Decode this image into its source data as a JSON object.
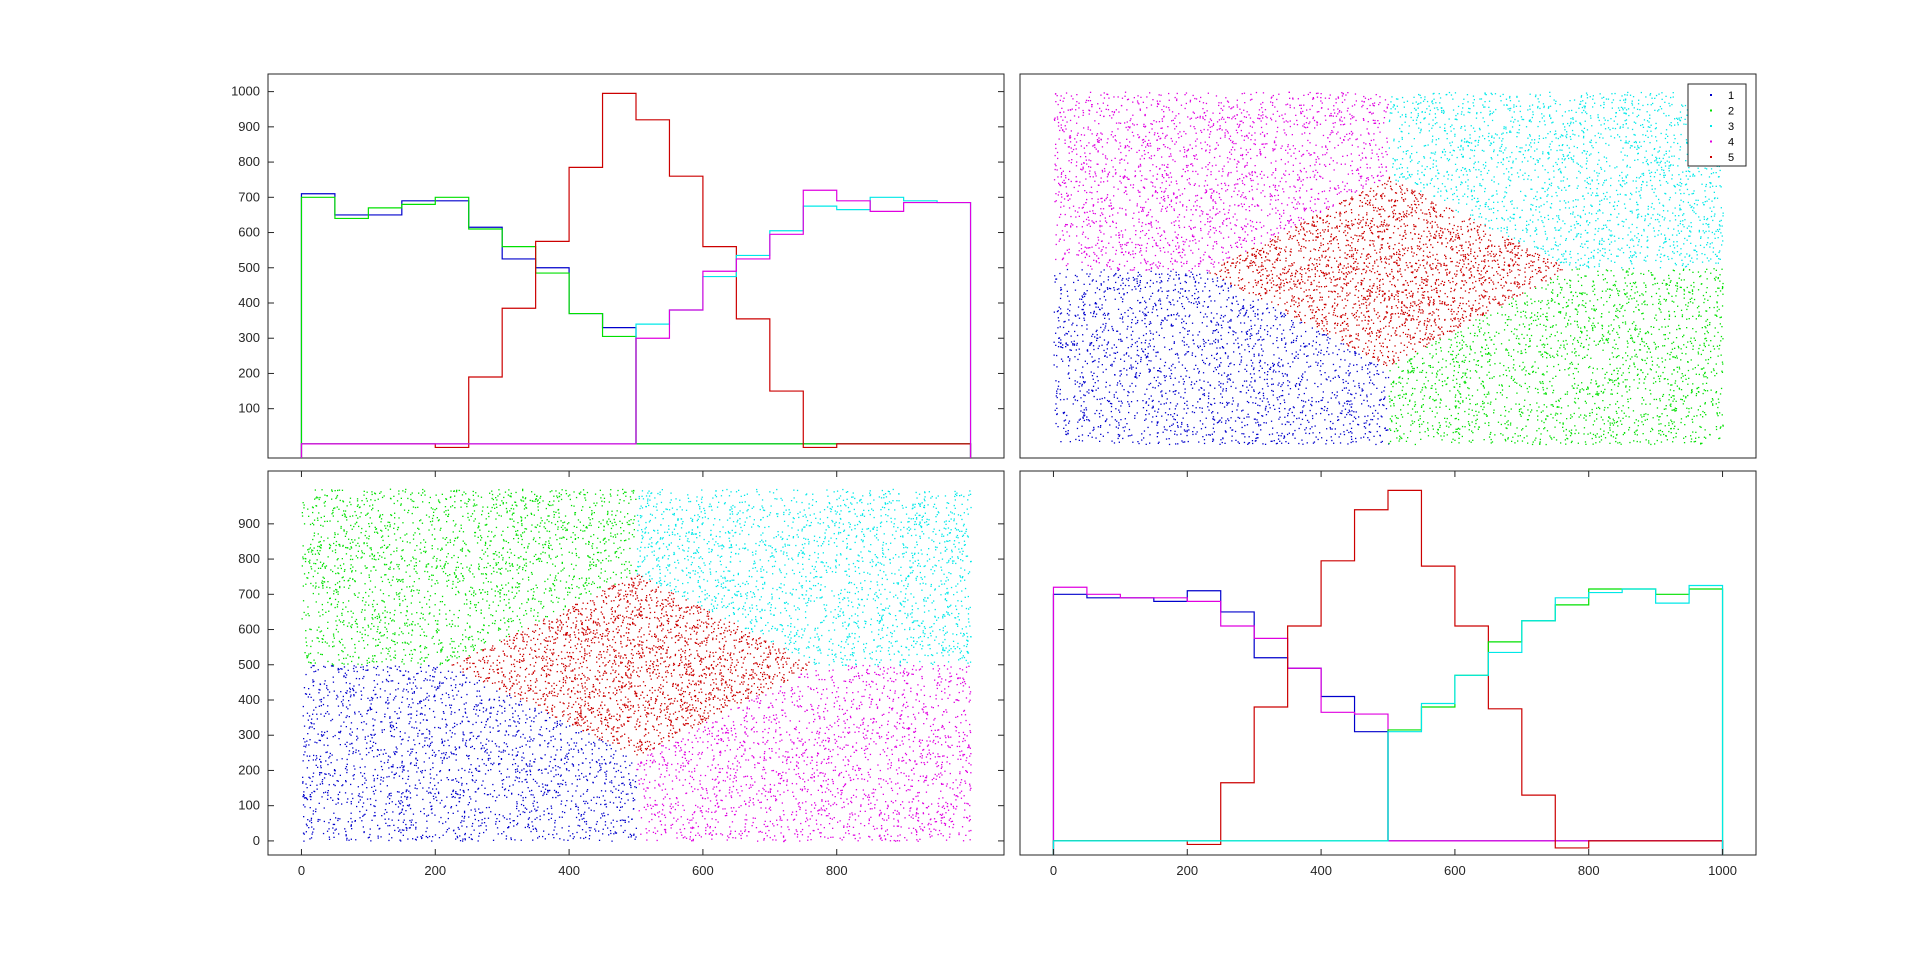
{
  "background": "#ffffff",
  "cluster_colors": {
    "1": "#0000cc",
    "2": "#00e000",
    "3": "#00e8e8",
    "4": "#e000e0",
    "5": "#cc0000"
  },
  "chart_data": [
    {
      "id": "top-left",
      "type": "histogram-stairs",
      "description_axis": "x marginal histograms per cluster",
      "xlim": [
        -50,
        1050
      ],
      "ylim": [
        -40,
        1050
      ],
      "x_ticks": [],
      "y_ticks": [
        "100",
        "200",
        "300",
        "400",
        "500",
        "600",
        "700",
        "800",
        "900",
        "1000"
      ],
      "bin_edges": [
        0,
        50,
        100,
        150,
        200,
        250,
        300,
        350,
        400,
        450,
        500,
        550,
        600,
        650,
        700,
        750,
        800,
        850,
        900,
        950,
        1000
      ],
      "series": [
        {
          "color_key": "1",
          "values": [
            710,
            650,
            650,
            690,
            690,
            615,
            525,
            500,
            370,
            330,
            0,
            0,
            0,
            0,
            0,
            0,
            0,
            0,
            0,
            0
          ]
        },
        {
          "color_key": "2",
          "values": [
            700,
            640,
            670,
            680,
            700,
            610,
            560,
            485,
            370,
            305,
            0,
            0,
            0,
            0,
            0,
            0,
            0,
            0,
            0,
            0
          ]
        },
        {
          "color_key": "5",
          "values": [
            0,
            0,
            0,
            0,
            -10,
            190,
            385,
            575,
            785,
            995,
            920,
            760,
            560,
            355,
            150,
            -10,
            0,
            0,
            0,
            0
          ]
        },
        {
          "color_key": "3",
          "values": [
            0,
            0,
            0,
            0,
            0,
            0,
            0,
            0,
            0,
            0,
            340,
            380,
            475,
            535,
            605,
            675,
            665,
            700,
            690,
            685
          ]
        },
        {
          "color_key": "4",
          "values": [
            0,
            0,
            0,
            0,
            0,
            0,
            0,
            0,
            0,
            0,
            300,
            380,
            490,
            525,
            595,
            720,
            690,
            660,
            685,
            685
          ]
        }
      ]
    },
    {
      "id": "top-right",
      "type": "scatter-regions",
      "xlim": [
        -50,
        1050
      ],
      "ylim": [
        -40,
        1050
      ],
      "x_ticks": [],
      "y_ticks": [],
      "legend": {
        "position": "top-right",
        "entries": [
          "1",
          "2",
          "3",
          "4",
          "5"
        ]
      },
      "regions": [
        {
          "color_key": "1",
          "polygon": [
            [
              0,
              0
            ],
            [
              500,
              0
            ],
            [
              500,
              220
            ],
            [
              230,
              490
            ],
            [
              0,
              500
            ]
          ]
        },
        {
          "color_key": "2",
          "polygon": [
            [
              500,
              0
            ],
            [
              1000,
              0
            ],
            [
              1000,
              500
            ],
            [
              770,
              500
            ],
            [
              500,
              220
            ]
          ]
        },
        {
          "color_key": "3",
          "polygon": [
            [
              500,
              1000
            ],
            [
              1000,
              1000
            ],
            [
              1000,
              500
            ],
            [
              770,
              500
            ],
            [
              500,
              760
            ]
          ]
        },
        {
          "color_key": "4",
          "polygon": [
            [
              0,
              500
            ],
            [
              230,
              490
            ],
            [
              500,
              760
            ],
            [
              500,
              1000
            ],
            [
              0,
              1000
            ]
          ]
        },
        {
          "color_key": "5",
          "polygon": [
            [
              230,
              490
            ],
            [
              500,
              760
            ],
            [
              770,
              500
            ],
            [
              500,
              220
            ]
          ]
        }
      ]
    },
    {
      "id": "bottom-left",
      "type": "scatter-regions",
      "xlim": [
        -50,
        1050
      ],
      "ylim": [
        -40,
        1050
      ],
      "x_ticks": [
        "0",
        "200",
        "400",
        "600",
        "800"
      ],
      "x_tick_values": [
        0,
        200,
        400,
        600,
        800
      ],
      "y_ticks": [
        "0",
        "100",
        "200",
        "300",
        "400",
        "500",
        "600",
        "700",
        "800",
        "900"
      ],
      "regions": [
        {
          "color_key": "1",
          "polygon": [
            [
              0,
              0
            ],
            [
              500,
              0
            ],
            [
              500,
              240
            ],
            [
              220,
              500
            ],
            [
              0,
              500
            ]
          ]
        },
        {
          "color_key": "4",
          "polygon": [
            [
              500,
              0
            ],
            [
              1000,
              0
            ],
            [
              1000,
              500
            ],
            [
              770,
              500
            ],
            [
              500,
              240
            ]
          ]
        },
        {
          "color_key": "3",
          "polygon": [
            [
              500,
              1000
            ],
            [
              1000,
              1000
            ],
            [
              1000,
              500
            ],
            [
              770,
              500
            ],
            [
              500,
              760
            ]
          ]
        },
        {
          "color_key": "2",
          "polygon": [
            [
              0,
              500
            ],
            [
              220,
              500
            ],
            [
              500,
              760
            ],
            [
              500,
              1000
            ],
            [
              0,
              1000
            ]
          ]
        },
        {
          "color_key": "5",
          "polygon": [
            [
              220,
              500
            ],
            [
              500,
              760
            ],
            [
              770,
              500
            ],
            [
              500,
              240
            ]
          ]
        }
      ]
    },
    {
      "id": "bottom-right",
      "type": "histogram-stairs",
      "xlim": [
        -50,
        1050
      ],
      "ylim": [
        -40,
        1050
      ],
      "x_ticks": [
        "0",
        "200",
        "400",
        "600",
        "800",
        "1000"
      ],
      "x_tick_values": [
        0,
        200,
        400,
        600,
        800,
        1000
      ],
      "y_ticks": [],
      "bin_edges": [
        0,
        50,
        100,
        150,
        200,
        250,
        300,
        350,
        400,
        450,
        500,
        550,
        600,
        650,
        700,
        750,
        800,
        850,
        900,
        950,
        1000
      ],
      "series": [
        {
          "color_key": "1",
          "values": [
            700,
            690,
            690,
            680,
            710,
            650,
            520,
            490,
            410,
            310,
            0,
            0,
            0,
            0,
            0,
            0,
            0,
            0,
            0,
            0
          ]
        },
        {
          "color_key": "4",
          "values": [
            720,
            700,
            690,
            690,
            680,
            610,
            575,
            490,
            365,
            360,
            0,
            0,
            0,
            0,
            0,
            0,
            0,
            0,
            0,
            0
          ]
        },
        {
          "color_key": "5",
          "values": [
            0,
            0,
            0,
            0,
            -10,
            165,
            380,
            610,
            795,
            940,
            995,
            780,
            610,
            375,
            130,
            -20,
            0,
            0,
            0,
            0
          ]
        },
        {
          "color_key": "2",
          "values": [
            0,
            0,
            0,
            0,
            0,
            0,
            0,
            0,
            0,
            0,
            315,
            380,
            470,
            565,
            625,
            670,
            715,
            715,
            700,
            715
          ]
        },
        {
          "color_key": "3",
          "values": [
            0,
            0,
            0,
            0,
            0,
            0,
            0,
            0,
            0,
            0,
            310,
            390,
            470,
            535,
            625,
            690,
            705,
            715,
            675,
            725
          ]
        }
      ]
    }
  ]
}
